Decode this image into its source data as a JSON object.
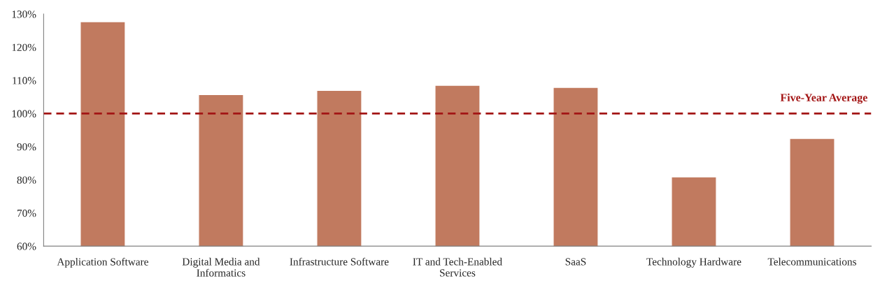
{
  "chart_data": {
    "type": "bar",
    "categories": [
      "Application Software",
      "Digital Media and Informatics",
      "Infrastructure Software",
      "IT and Tech-Enabled Services",
      "SaaS",
      "Technology Hardware",
      "Telecommunications"
    ],
    "values": [
      127.7,
      105.7,
      107.0,
      108.5,
      107.9,
      80.9,
      92.5
    ],
    "color": "#c17a5f",
    "ylim": [
      60,
      130
    ],
    "yticks": [
      {
        "value": 60,
        "label": "60%"
      },
      {
        "value": 70,
        "label": "70%"
      },
      {
        "value": 80,
        "label": "80%"
      },
      {
        "value": 90,
        "label": "90%"
      },
      {
        "value": 100,
        "label": "100%"
      },
      {
        "value": 110,
        "label": "110%"
      },
      {
        "value": 120,
        "label": "120%"
      },
      {
        "value": 130,
        "label": "130%"
      }
    ],
    "ref_lines": [
      {
        "axis": "y",
        "value": 100,
        "label": "Five-Year Average",
        "color": "#a31515",
        "line_style": "dashed"
      }
    ],
    "grid": false,
    "legend": false
  }
}
